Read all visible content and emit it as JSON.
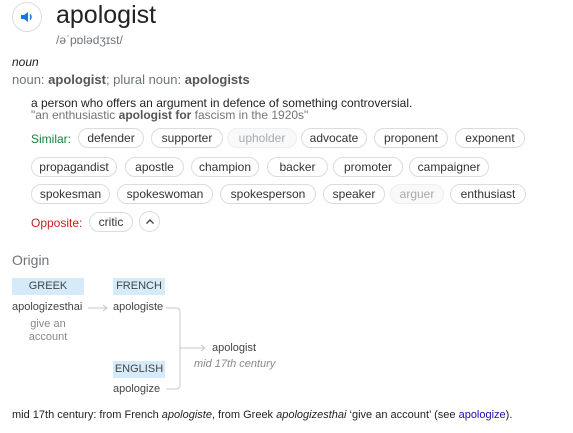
{
  "entry": {
    "word": "apologist",
    "phonetic": "/əˈpɒlədʒɪst/",
    "part_of_speech": "noun",
    "forms_prefix": "noun: ",
    "forms_word": "apologist",
    "forms_mid": "; plural noun: ",
    "forms_plural": "apologists"
  },
  "definition": {
    "text": "a person who offers an argument in defence of something controversial.",
    "example_pre": "\"an enthusiastic ",
    "example_bold": "apologist for",
    "example_post": " fascism in the 1920s\""
  },
  "similar_label": "Similar:",
  "similar": [
    {
      "label": "defender"
    },
    {
      "label": "supporter"
    },
    {
      "label": "upholder",
      "faded": true
    },
    {
      "label": "advocate"
    },
    {
      "label": "proponent"
    },
    {
      "label": "exponent"
    },
    {
      "label": "propagandist"
    },
    {
      "label": "apostle"
    },
    {
      "label": "champion"
    },
    {
      "label": "backer"
    },
    {
      "label": "promoter"
    },
    {
      "label": "campaigner"
    },
    {
      "label": "spokesman"
    },
    {
      "label": "spokeswoman"
    },
    {
      "label": "spokesperson"
    },
    {
      "label": "speaker"
    },
    {
      "label": "arguer",
      "faded": true
    },
    {
      "label": "enthusiast"
    }
  ],
  "opposite_label": "Opposite:",
  "opposite": [
    {
      "label": "critic"
    }
  ],
  "origin": {
    "heading": "Origin",
    "greek_label": "GREEK",
    "greek_word": "apologizesthai",
    "greek_gloss_1": "give an",
    "greek_gloss_2": "account",
    "french_label": "FRENCH",
    "french_word": "apologiste",
    "english_label": "ENGLISH",
    "english_word": "apologize",
    "result_word": "apologist",
    "result_century": "mid 17th century"
  },
  "footer": {
    "t1": "mid 17th century: from French ",
    "i1": "apologiste",
    "t2": ", from Greek ",
    "i2": "apologizesthai",
    "t3": " ‘give an account’ (see ",
    "link": "apologize",
    "t4": ")."
  }
}
